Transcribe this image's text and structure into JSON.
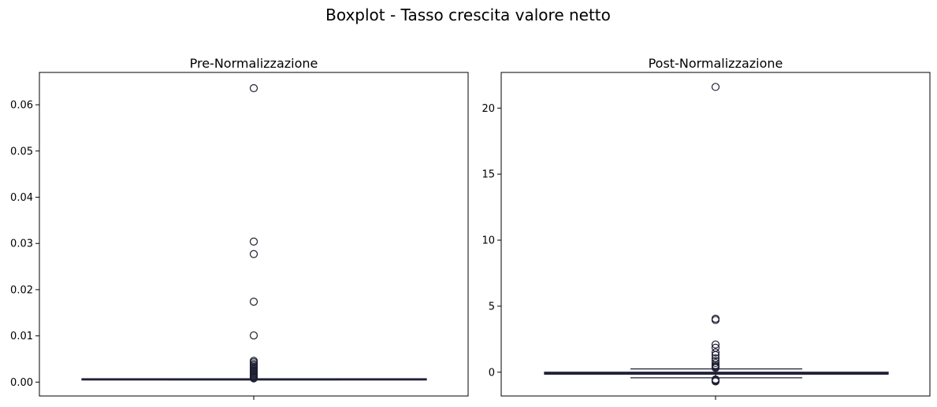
{
  "suptitle": "Boxplot - Tasso crescita valore netto",
  "chart_data": [
    {
      "type": "box",
      "title": "Pre-Normalizzazione",
      "xlabel": "",
      "ylabel": "",
      "ylim": [
        -0.003,
        0.067
      ],
      "yticks": [
        0.0,
        0.01,
        0.02,
        0.03,
        0.04,
        0.05,
        0.06
      ],
      "ytick_labels": [
        "0.00",
        "0.01",
        "0.02",
        "0.03",
        "0.04",
        "0.05",
        "0.06"
      ],
      "box": {
        "whisker_low": 0.0005,
        "q1": 0.0005,
        "median": 0.0005,
        "q3": 0.0006,
        "whisker_high": 0.0006
      },
      "outliers": [
        0.0636,
        0.0304,
        0.0277,
        0.0174,
        0.0101,
        0.0046,
        0.0043,
        0.0039,
        0.0036,
        0.0033,
        0.003,
        0.0027,
        0.0025,
        0.0023,
        0.0021,
        0.0019,
        0.0017,
        0.0015,
        0.0013,
        0.0011,
        0.001,
        0.0009,
        0.0008
      ],
      "grid": false,
      "color": "#1f1f33"
    },
    {
      "type": "box",
      "title": "Post-Normalizzazione",
      "xlabel": "",
      "ylabel": "",
      "ylim": [
        -1.8,
        22.7
      ],
      "yticks": [
        0,
        5,
        10,
        15,
        20
      ],
      "ytick_labels": [
        "0",
        "5",
        "10",
        "15",
        "20"
      ],
      "box": {
        "whisker_low": -0.42,
        "q1": -0.15,
        "median": -0.08,
        "q3": 0.0,
        "whisker_high": 0.25
      },
      "outliers": [
        21.6,
        4.05,
        3.95,
        2.1,
        1.85,
        1.5,
        1.3,
        1.05,
        0.85,
        0.7,
        0.55,
        0.45,
        0.38,
        0.32,
        -0.55,
        -0.6,
        -0.65,
        -0.7
      ],
      "grid": false,
      "color": "#1f1f33"
    }
  ]
}
